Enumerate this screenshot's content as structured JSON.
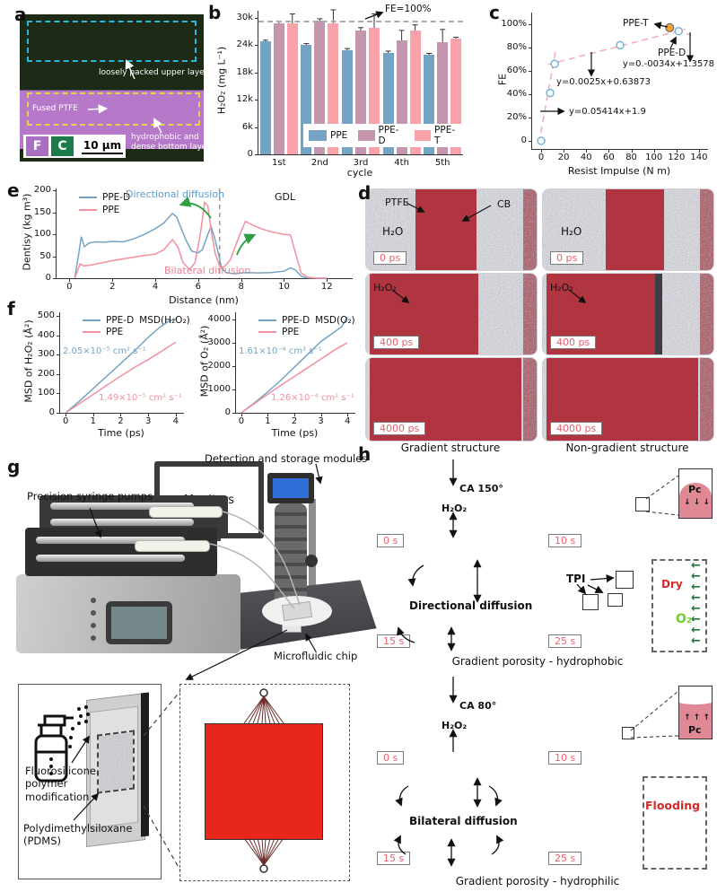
{
  "panels": {
    "a_label": "a",
    "b_label": "b",
    "c_label": "c",
    "d_label": "d",
    "e_label": "e",
    "f_label": "f",
    "g_label": "g",
    "h_label": "h"
  },
  "panel_a": {
    "annotation_upper": "loosely packed upper layer",
    "annotation_ptfe": "Fused PTFE",
    "annotation_bottom_1": "hydrophobic and",
    "annotation_bottom_2": "dense bottom laye",
    "legend_f": "F",
    "legend_c": "C",
    "scale_bar": "10 μm"
  },
  "chart_data": [
    {
      "type": "bar",
      "panel": "b",
      "xlabel": "cycle",
      "ylabel": "H₂O₂ (mg L⁻¹)",
      "categories": [
        "1st",
        "2nd",
        "3rd",
        "4th",
        "5th"
      ],
      "series": [
        {
          "name": "PPE",
          "color": "#74a4c4",
          "values": [
            24800,
            24100,
            22900,
            22300,
            21900
          ],
          "errors": [
            250,
            200,
            300,
            350,
            250
          ]
        },
        {
          "name": "PPE-D",
          "color": "#c495ac",
          "values": [
            28700,
            29400,
            27200,
            25000,
            24700
          ],
          "errors": [
            500,
            350,
            600,
            2200,
            2700
          ]
        },
        {
          "name": "PPE-T",
          "color": "#f9a2a9",
          "values": [
            28700,
            28700,
            27700,
            27200,
            25400
          ],
          "errors": [
            2100,
            3000,
            3100,
            1200,
            300
          ]
        }
      ],
      "ylim": [
        0,
        31500
      ],
      "ytick_values": [
        0,
        6000,
        12000,
        18000,
        24000,
        30000
      ],
      "ytick_labels": [
        "0",
        "6k",
        "12k",
        "18k",
        "24k",
        "30k"
      ],
      "ref_line": {
        "value": 29400,
        "label": "FE=100%"
      }
    },
    {
      "type": "scatter",
      "panel": "c",
      "xlabel": "Resist Impulse (N m)",
      "ylabel": "FE",
      "xlim": [
        -8,
        148
      ],
      "ylim": [
        -0.07,
        1.1
      ],
      "xtick_values": [
        0,
        20,
        40,
        60,
        80,
        100,
        120,
        140
      ],
      "xtick_labels": [
        "0",
        "20",
        "40",
        "60",
        "80",
        "100",
        "120",
        "140"
      ],
      "ytick_values": [
        0,
        0.2,
        0.4,
        0.6,
        0.8,
        1.0
      ],
      "ytick_labels": [
        "0",
        "20%",
        "40%",
        "60%",
        "80%",
        "100%"
      ],
      "points": [
        [
          0,
          0
        ],
        [
          8,
          0.41
        ],
        [
          12,
          0.66
        ],
        [
          70,
          0.82
        ],
        [
          122,
          0.94
        ]
      ],
      "point_color": "#7ab4d5",
      "highlight": {
        "x": 114,
        "y": 0.97,
        "color": "#f2a33c",
        "label": "PPE-T"
      },
      "pped_label": "PPE-D",
      "trend_color": "#f6aab6",
      "trends": [
        [
          -2,
          -0.02,
          13,
          0.78
        ],
        [
          6,
          0.654,
          128,
          0.958
        ],
        [
          102,
          1.01,
          133,
          0.905
        ]
      ],
      "equations": [
        "y=0.05414x+1.9",
        "y=0.0025x+0.63873",
        "y=0.-0034x+1.3578"
      ]
    },
    {
      "type": "line",
      "panel": "e",
      "xlabel": "Distance (nm)",
      "ylabel": "Dentisy (kg m³)",
      "xlim": [
        -0.6,
        13.2
      ],
      "ylim": [
        0,
        205
      ],
      "xtick_values": [
        0,
        2,
        4,
        6,
        8,
        10,
        12
      ],
      "xtick_labels": [
        "0",
        "2",
        "4",
        "6",
        "8",
        "10",
        "12"
      ],
      "ytick_values": [
        0,
        50,
        100,
        150,
        200
      ],
      "ytick_labels": [
        "0",
        "50",
        "100",
        "150",
        "200"
      ],
      "dashed_x": 7.0,
      "series": [
        {
          "name": "PPE-D",
          "color": "#74a4c4",
          "x": [
            0.25,
            0.45,
            0.55,
            0.7,
            0.9,
            1.2,
            1.6,
            2.0,
            2.5,
            3.0,
            3.5,
            4.0,
            4.4,
            4.8,
            5.0,
            5.2,
            5.45,
            5.7,
            6.0,
            6.2,
            6.45,
            6.6,
            6.75,
            6.95,
            7.1,
            7.3,
            7.7,
            8.2,
            8.8,
            9.4,
            10.0,
            10.3,
            10.55,
            10.8,
            11.0,
            11.5,
            12.0
          ],
          "y": [
            0,
            60,
            95,
            72,
            80,
            83,
            82,
            84,
            83,
            90,
            100,
            113,
            126,
            148,
            140,
            115,
            85,
            62,
            58,
            65,
            100,
            118,
            95,
            55,
            22,
            13,
            10,
            13,
            12,
            13,
            16,
            24,
            18,
            5,
            1,
            0,
            0
          ]
        },
        {
          "name": "PPE",
          "color": "#f2909d",
          "x": [
            0.25,
            0.5,
            0.65,
            1.0,
            1.5,
            2.0,
            2.5,
            3.0,
            3.5,
            4.0,
            4.4,
            4.8,
            5.05,
            5.3,
            5.6,
            5.85,
            6.1,
            6.3,
            6.45,
            6.6,
            6.8,
            7.0,
            7.2,
            7.5,
            7.9,
            8.2,
            8.6,
            9.0,
            9.5,
            10.0,
            10.3,
            10.55,
            10.8,
            11.1,
            11.5,
            12.0
          ],
          "y": [
            0,
            33,
            28,
            30,
            35,
            40,
            44,
            48,
            52,
            55,
            65,
            88,
            72,
            35,
            20,
            35,
            100,
            173,
            165,
            110,
            55,
            28,
            25,
            42,
            95,
            130,
            120,
            112,
            105,
            100,
            99,
            55,
            12,
            2,
            0,
            0
          ]
        }
      ],
      "annotations": {
        "directional": "Directional diffusion",
        "bilateral": "Bilateral diffusion",
        "gdl": "GDL"
      }
    },
    {
      "type": "line",
      "panel": "f-left",
      "xlabel": "Time (ps)",
      "ylabel": "MSD of H₂O₂ (Å²)",
      "xlim": [
        -0.2,
        4.3
      ],
      "ylim": [
        0,
        520
      ],
      "xtick_values": [
        0,
        1,
        2,
        3,
        4
      ],
      "xtick_labels": [
        "0",
        "1",
        "2",
        "3",
        "4"
      ],
      "ytick_values": [
        0,
        100,
        200,
        300,
        400,
        500
      ],
      "ytick_labels": [
        "0",
        "100",
        "200",
        "300",
        "400",
        "500"
      ],
      "legend_suffix": "MSD(H₂O₂)",
      "series": [
        {
          "name": "PPE-D",
          "color": "#74a4c4",
          "x": [
            0,
            0.5,
            1,
            1.5,
            2,
            2.5,
            3,
            3.4,
            3.7,
            4
          ],
          "y": [
            0,
            60,
            125,
            190,
            255,
            320,
            390,
            440,
            470,
            487
          ]
        },
        {
          "name": "PPE",
          "color": "#f2909d",
          "x": [
            0,
            0.5,
            1,
            1.5,
            2,
            2.5,
            3,
            3.5,
            4
          ],
          "y": [
            0,
            48,
            95,
            143,
            190,
            235,
            275,
            320,
            365
          ]
        }
      ],
      "annotations": {
        "blue": "2.05×10⁻⁵ cm² s⁻¹",
        "pink": "1.49×10⁻⁵ cm² s⁻¹"
      }
    },
    {
      "type": "line",
      "panel": "f-right",
      "xlabel": "Time (ps)",
      "ylabel": "MSD of O₂ (Å²)",
      "xlim": [
        -0.2,
        4.3
      ],
      "ylim": [
        0,
        4300
      ],
      "xtick_values": [
        0,
        1,
        2,
        3,
        4
      ],
      "xtick_labels": [
        "0",
        "1",
        "2",
        "3",
        "4"
      ],
      "ytick_values": [
        0,
        1000,
        2000,
        3000,
        4000
      ],
      "ytick_labels": [
        "0",
        "1000",
        "2000",
        "3000",
        "4000"
      ],
      "legend_suffix": "MSD(O₂)",
      "series": [
        {
          "name": "PPE-D",
          "color": "#74a4c4",
          "x": [
            0,
            0.5,
            1,
            1.5,
            2,
            2.5,
            3,
            3.5,
            3.8,
            4
          ],
          "y": [
            0,
            430,
            900,
            1400,
            1950,
            2500,
            3050,
            3450,
            3700,
            4100
          ]
        },
        {
          "name": "PPE",
          "color": "#f2909d",
          "x": [
            0,
            0.5,
            1,
            1.5,
            2,
            2.5,
            3,
            3.5,
            4
          ],
          "y": [
            0,
            400,
            800,
            1180,
            1550,
            1930,
            2300,
            2680,
            3000
          ]
        }
      ],
      "annotations": {
        "blue": "1.61×10⁻⁴ cm² s⁻¹",
        "pink": "1.26×10⁻⁴ cm² s⁻¹"
      }
    }
  ],
  "panel_d": {
    "labels": {
      "ptfe": "PTFE",
      "cb": "CB",
      "h2o": "H₂O",
      "h2o2": "H₂O₂"
    },
    "times": [
      "0 ps",
      "400 ps",
      "4000 ps"
    ],
    "caption_left": "Gradient structure",
    "caption_right": "Non-gradient structure"
  },
  "panel_g": {
    "labels": {
      "pumps": "Precision syringe pumps",
      "monitors": "Monitors",
      "detection": "Detection and storage modules",
      "chip": "Microfluidic chip",
      "fluoro": "Fluorosilicone polymer modification",
      "pdms": "Polydimethylsiloxane (PDMS)"
    }
  },
  "panel_h": {
    "hydrophobic": {
      "ca": "CA 150°",
      "h2o2": "H₂O₂",
      "diffusion": "Directional diffusion",
      "tpi": "TPI",
      "dry": "Dry",
      "o2": "O₂",
      "pc": "Pc",
      "times": [
        "0 s",
        "10 s",
        "15 s",
        "25 s"
      ],
      "caption": "Gradient porosity - hydrophobic"
    },
    "hydrophilic": {
      "ca": "CA 80°",
      "h2o2": "H₂O₂",
      "diffusion": "Bilateral diffusion",
      "flooding": "Flooding",
      "pc": "Pc",
      "times": [
        "0 s",
        "10 s",
        "15 s",
        "25 s"
      ],
      "caption": "Gradient porosity - hydrophilic"
    }
  },
  "colors": {
    "accent_blue": "#74a4c4",
    "accent_mauve": "#c495ac",
    "accent_pink": "#f9a2a9",
    "h_blue": "#5b87a8",
    "h_pink": "#f79ca4",
    "time_pink": "#e8606e",
    "green_arrow": "#2f9e44",
    "dark_green": "#1d7a3d",
    "red_text": "#d42a2a",
    "orange": "#f2a33c"
  }
}
